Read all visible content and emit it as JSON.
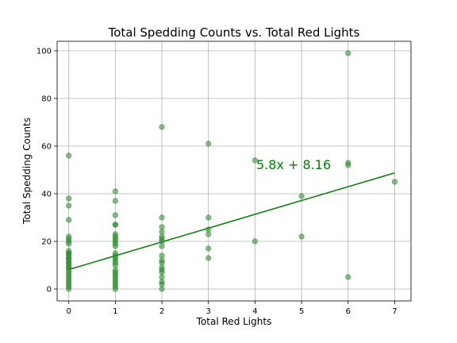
{
  "chart_data": {
    "type": "scatter",
    "title": "Total Spedding Counts vs. Total Red Lights",
    "xlabel": "Total Red Lights",
    "ylabel": "Total Spedding Counts",
    "xlim": [
      -0.25,
      7.35
    ],
    "ylim": [
      -5,
      104
    ],
    "xticks": [
      0,
      1,
      2,
      3,
      4,
      5,
      6,
      7
    ],
    "yticks": [
      0,
      20,
      40,
      60,
      80,
      100
    ],
    "grid": true,
    "colors": {
      "points": "#2e8b2e",
      "line": "#008000",
      "annotation": "#008000"
    },
    "series": [
      {
        "x": [
          0,
          0,
          0,
          0,
          0,
          0,
          0,
          0,
          0,
          0,
          0,
          0,
          0,
          0,
          0,
          0,
          0,
          0,
          0,
          0,
          0,
          0,
          0,
          0,
          0,
          0,
          0,
          0,
          0,
          1,
          1,
          1,
          1,
          1,
          1,
          1,
          1,
          1,
          1,
          1,
          1,
          1,
          1,
          1,
          1,
          1,
          1,
          1,
          1,
          1,
          1,
          1,
          1,
          1,
          1,
          2,
          2,
          2,
          2,
          2,
          2,
          2,
          2,
          2,
          2,
          2,
          2,
          2,
          2,
          2,
          2,
          2,
          2,
          3,
          3,
          3,
          3,
          3,
          3,
          4,
          4,
          5,
          5,
          6,
          6,
          6,
          6,
          7
        ],
        "y": [
          56,
          38,
          35,
          29,
          22,
          21,
          20,
          19,
          16,
          15,
          14,
          13,
          12,
          11,
          10,
          9,
          8,
          7,
          6,
          5,
          4,
          3,
          2,
          1,
          0,
          15,
          13,
          11,
          9,
          41,
          37,
          31,
          27,
          23,
          22,
          21,
          20,
          18,
          15,
          14,
          13,
          12,
          11,
          10,
          8,
          7,
          6,
          5,
          4,
          3,
          2,
          1,
          0,
          27,
          19,
          68,
          30,
          26,
          24,
          22,
          21,
          20,
          18,
          14,
          12,
          11,
          9,
          8,
          7,
          5,
          3,
          2,
          0,
          61,
          30,
          25,
          23,
          17,
          13,
          54,
          20,
          39,
          22,
          99,
          53,
          52,
          5,
          45
        ]
      }
    ],
    "trendline": {
      "slope": 5.8,
      "intercept": 8.16,
      "x_range": [
        0,
        7
      ],
      "label": "5.8x + 8.16"
    }
  }
}
